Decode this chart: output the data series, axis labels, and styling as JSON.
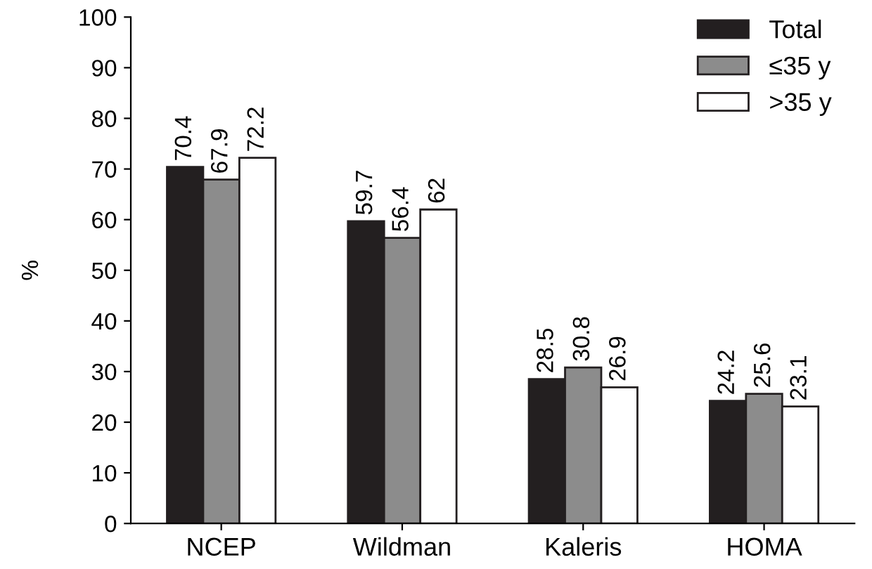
{
  "chart_data": {
    "type": "bar",
    "ylabel": "%",
    "categories": [
      "NCEP",
      "Wildman",
      "Kaleris",
      "HOMA"
    ],
    "series": [
      {
        "name": "Total",
        "color": "#231f20",
        "values": [
          70.4,
          59.7,
          28.5,
          24.2
        ]
      },
      {
        "name": "≤35 y",
        "color": "#8c8c8c",
        "values": [
          67.9,
          56.4,
          30.8,
          25.6
        ]
      },
      {
        "name": ">35 y",
        "color": "#ffffff",
        "values": [
          72.2,
          62,
          26.9,
          23.1
        ]
      }
    ],
    "ylim": [
      0,
      100
    ],
    "yticks": [
      0,
      10,
      20,
      30,
      40,
      50,
      60,
      70,
      80,
      90,
      100
    ],
    "grid": false,
    "legend": "top right",
    "data_labels": true
  }
}
